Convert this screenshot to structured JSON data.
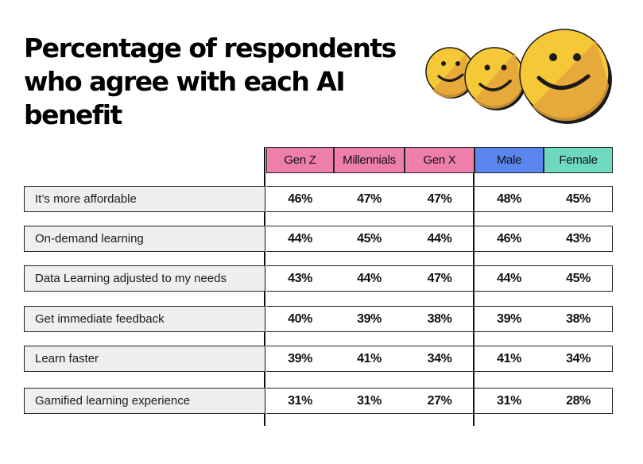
{
  "title": "Percentage of respondents who agree with each AI benefit",
  "colors": {
    "gen_z": "#ee7fab",
    "millennials": "#ee7fab",
    "gen_x": "#ee7fab",
    "male": "#5b86f0",
    "female": "#6fd9bf",
    "label_bg": "#efefef",
    "smiley_yellow": "#f4c836",
    "smiley_orange": "#e4a33b"
  },
  "chart_data": {
    "type": "table",
    "columns": [
      "Gen Z",
      "Millennials",
      "Gen X",
      "Male",
      "Female"
    ],
    "rows": [
      {
        "label": "It’s more affordable",
        "values": [
          "46%",
          "47%",
          "47%",
          "48%",
          "45%"
        ]
      },
      {
        "label": "On-demand learning",
        "values": [
          "44%",
          "45%",
          "44%",
          "46%",
          "43%"
        ]
      },
      {
        "label": "Data Learning adjusted to my needs",
        "values": [
          "43%",
          "44%",
          "47%",
          "44%",
          "45%"
        ]
      },
      {
        "label": "Get immediate feedback",
        "values": [
          "40%",
          "39%",
          "38%",
          "39%",
          "38%"
        ]
      },
      {
        "label": "Learn faster",
        "values": [
          "39%",
          "41%",
          "34%",
          "41%",
          "34%"
        ]
      },
      {
        "label": "Gamified learning experience",
        "values": [
          "31%",
          "31%",
          "27%",
          "31%",
          "28%"
        ]
      }
    ]
  }
}
